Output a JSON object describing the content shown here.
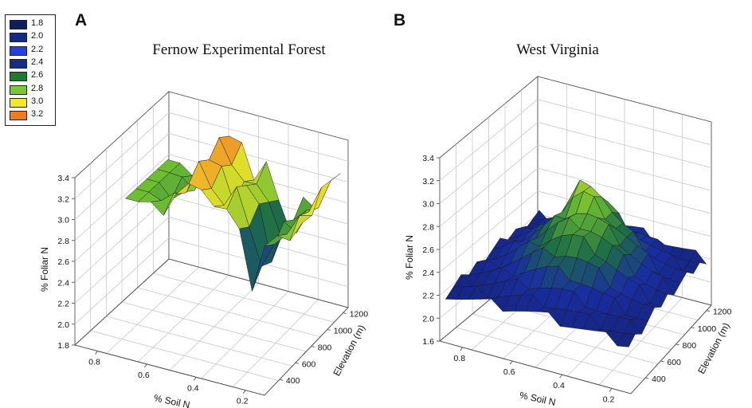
{
  "legend": {
    "items": [
      {
        "label": "1.8",
        "color": "#0d1f5c"
      },
      {
        "label": "2.0",
        "color": "#102a86"
      },
      {
        "label": "2.2",
        "color": "#2a3fe0"
      },
      {
        "label": "2.4",
        "color": "#162d86"
      },
      {
        "label": "2.6",
        "color": "#1a7a2e"
      },
      {
        "label": "2.8",
        "color": "#7cc63a"
      },
      {
        "label": "3.0",
        "color": "#f2ea1c"
      },
      {
        "label": "3.2",
        "color": "#f07a1c"
      }
    ]
  },
  "chart_data": [
    {
      "type": "surface3d",
      "panel_label": "A",
      "title": "Fernow Experimental Forest",
      "zlabel": "% Foliar N",
      "xlabel": "% Soil N",
      "ylabel": "Elevation (m)",
      "zlim": [
        1.8,
        3.4
      ],
      "z_ticks": [
        "1.8",
        "2.0",
        "2.2",
        "2.4",
        "2.6",
        "2.8",
        "3.0",
        "3.2",
        "3.4"
      ],
      "x_ticks": [
        "0.8",
        "0.6",
        "0.4",
        "0.2"
      ],
      "y_ticks": [
        "400",
        "600",
        "800",
        "1000",
        "1200"
      ],
      "surface_z_range": [
        2.2,
        3.3
      ],
      "grid": true
    },
    {
      "type": "surface3d",
      "panel_label": "B",
      "title": "West Virginia",
      "zlabel": "% Foliar N",
      "xlabel": "% Soil N",
      "ylabel": "Elevation (m)",
      "zlim": [
        1.6,
        3.4
      ],
      "z_ticks": [
        "1.6",
        "2.0",
        "2.2",
        "2.4",
        "2.6",
        "2.8",
        "3.0",
        "3.2",
        "3.4"
      ],
      "x_ticks": [
        "0.8",
        "0.6",
        "0.4",
        "0.2"
      ],
      "y_ticks": [
        "400",
        "600",
        "800",
        "1000",
        "1200"
      ],
      "surface_z_range": [
        2.0,
        3.0
      ],
      "grid": true
    }
  ]
}
